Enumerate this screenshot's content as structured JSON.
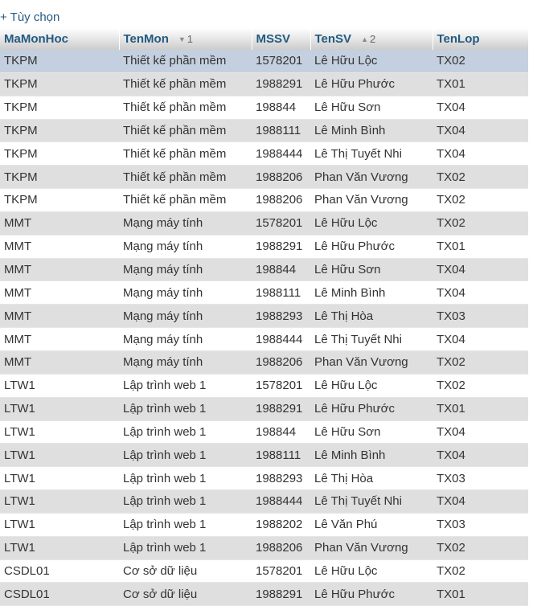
{
  "options_link": "+ Tùy chọn",
  "columns": [
    {
      "label": "MaMonHoc",
      "sort_icon": "",
      "sort_order": ""
    },
    {
      "label": "TenMon",
      "sort_icon": "▼",
      "sort_order": "1"
    },
    {
      "label": "MSSV",
      "sort_icon": "",
      "sort_order": ""
    },
    {
      "label": "TenSV",
      "sort_icon": "▲",
      "sort_order": "2"
    },
    {
      "label": "TenLop",
      "sort_icon": "",
      "sort_order": ""
    }
  ],
  "rows": [
    [
      "TKPM",
      "Thiết kế phần mềm",
      "1578201",
      "Lê Hữu Lộc",
      "TX02"
    ],
    [
      "TKPM",
      "Thiết kế phần mềm",
      "1988291",
      "Lê Hữu Phước",
      "TX01"
    ],
    [
      "TKPM",
      "Thiết kế phần mềm",
      "198844",
      "Lê Hữu Sơn",
      "TX04"
    ],
    [
      "TKPM",
      "Thiết kế phần mềm",
      "1988111",
      "Lê Minh Bình",
      "TX04"
    ],
    [
      "TKPM",
      "Thiết kế phần mềm",
      "1988444",
      "Lê Thị Tuyết Nhi",
      "TX04"
    ],
    [
      "TKPM",
      "Thiết kế phần mềm",
      "1988206",
      "Phan Văn Vương",
      "TX02"
    ],
    [
      "TKPM",
      "Thiết kế phần mềm",
      "1988206",
      "Phan Văn Vương",
      "TX02"
    ],
    [
      "MMT",
      "Mạng máy tính",
      "1578201",
      "Lê Hữu Lộc",
      "TX02"
    ],
    [
      "MMT",
      "Mạng máy tính",
      "1988291",
      "Lê Hữu Phước",
      "TX01"
    ],
    [
      "MMT",
      "Mạng máy tính",
      "198844",
      "Lê Hữu Sơn",
      "TX04"
    ],
    [
      "MMT",
      "Mạng máy tính",
      "1988111",
      "Lê Minh Bình",
      "TX04"
    ],
    [
      "MMT",
      "Mạng máy tính",
      "1988293",
      "Lê Thị Hòa",
      "TX03"
    ],
    [
      "MMT",
      "Mạng máy tính",
      "1988444",
      "Lê Thị Tuyết Nhi",
      "TX04"
    ],
    [
      "MMT",
      "Mạng máy tính",
      "1988206",
      "Phan Văn Vương",
      "TX02"
    ],
    [
      "LTW1",
      "Lập trình web 1",
      "1578201",
      "Lê Hữu Lộc",
      "TX02"
    ],
    [
      "LTW1",
      "Lập trình web 1",
      "1988291",
      "Lê Hữu Phước",
      "TX01"
    ],
    [
      "LTW1",
      "Lập trình web 1",
      "198844",
      "Lê Hữu Sơn",
      "TX04"
    ],
    [
      "LTW1",
      "Lập trình web 1",
      "1988111",
      "Lê Minh Bình",
      "TX04"
    ],
    [
      "LTW1",
      "Lập trình web 1",
      "1988293",
      "Lê Thị Hòa",
      "TX03"
    ],
    [
      "LTW1",
      "Lập trình web 1",
      "1988444",
      "Lê Thị Tuyết Nhi",
      "TX04"
    ],
    [
      "LTW1",
      "Lập trình web 1",
      "1988202",
      "Lê Văn Phú",
      "TX03"
    ],
    [
      "LTW1",
      "Lập trình web 1",
      "1988206",
      "Phan Văn Vương",
      "TX02"
    ],
    [
      "CSDL01",
      "Cơ sở dữ liệu",
      "1578201",
      "Lê Hữu Lộc",
      "TX02"
    ],
    [
      "CSDL01",
      "Cơ sở dữ liệu",
      "1988291",
      "Lê Hữu Phước",
      "TX01"
    ]
  ],
  "highlighted_row": 0,
  "colors": {
    "header_text": "#235a81",
    "row_even": "#dfdfdf",
    "row_odd": "#ffffff",
    "row_marked": "#c4d0df"
  }
}
